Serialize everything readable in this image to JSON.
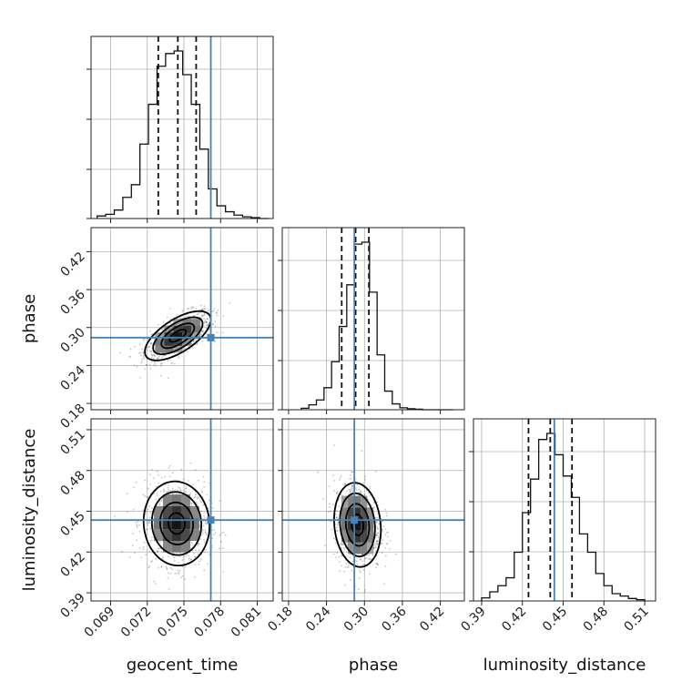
{
  "chart_data": {
    "type": "corner",
    "parameters": [
      "geocent_time",
      "phase",
      "luminosity_distance"
    ],
    "ranges": {
      "geocent_time": [
        0.0674,
        0.0823
      ],
      "phase": [
        0.17,
        0.458
      ],
      "luminosity_distance": [
        0.384,
        0.518
      ]
    },
    "ticks": {
      "geocent_time": [
        0.069,
        0.072,
        0.075,
        0.078,
        0.081
      ],
      "phase": [
        0.18,
        0.24,
        0.3,
        0.36,
        0.42
      ],
      "luminosity_distance": [
        0.39,
        0.42,
        0.45,
        0.48,
        0.51
      ]
    },
    "tick_labels": {
      "geocent_time": [
        "0.069",
        "0.072",
        "0.075",
        "0.078",
        "0.081"
      ],
      "phase": [
        "0.18",
        "0.24",
        "0.30",
        "0.36",
        "0.42"
      ],
      "luminosity_distance": [
        "0.39",
        "0.42",
        "0.45",
        "0.48",
        "0.51"
      ]
    },
    "truths": {
      "geocent_time": 0.0772,
      "phase": 0.284,
      "luminosity_distance": 0.4435
    },
    "quantiles": {
      "geocent_time": [
        0.0729,
        0.0745,
        0.076
      ],
      "phase": [
        0.264,
        0.286,
        0.307
      ],
      "luminosity_distance": [
        0.4245,
        0.4405,
        0.4565
      ]
    },
    "marginals": {
      "geocent_time": {
        "bins": [
          0.0679,
          0.0686,
          0.0693,
          0.07,
          0.0707,
          0.0714,
          0.0721,
          0.0728,
          0.0735,
          0.0742,
          0.0749,
          0.0756,
          0.0763,
          0.077,
          0.0777,
          0.0784,
          0.0791,
          0.0798,
          0.0805,
          0.0812
        ],
        "counts": [
          3,
          5,
          10,
          25,
          40,
          88,
          135,
          180,
          195,
          198,
          170,
          135,
          82,
          35,
          15,
          8,
          4,
          2,
          1,
          0
        ]
      },
      "phase": {
        "bins": [
          0.2,
          0.212,
          0.224,
          0.236,
          0.248,
          0.26,
          0.272,
          0.284,
          0.296,
          0.308,
          0.32,
          0.332,
          0.344,
          0.356,
          0.368,
          0.38,
          0.392,
          0.404,
          0.416,
          0.428
        ],
        "counts": [
          3,
          10,
          20,
          45,
          98,
          170,
          255,
          338,
          342,
          240,
          112,
          38,
          12,
          4,
          2,
          1,
          0,
          0,
          0,
          0
        ]
      },
      "luminosity_distance": {
        "bins": [
          0.39,
          0.396,
          0.402,
          0.408,
          0.414,
          0.42,
          0.426,
          0.432,
          0.438,
          0.444,
          0.45,
          0.456,
          0.462,
          0.468,
          0.474,
          0.48,
          0.486,
          0.492,
          0.498,
          0.504
        ],
        "counts": [
          5,
          15,
          25,
          38,
          80,
          145,
          200,
          265,
          275,
          240,
          205,
          170,
          110,
          80,
          45,
          25,
          12,
          8,
          4,
          2
        ]
      }
    },
    "pairs": [
      {
        "x": "geocent_time",
        "y": "phase",
        "center": [
          0.0745,
          0.287
        ],
        "sigma": [
          0.00135,
          0.0195
        ],
        "rho": 0.65
      },
      {
        "x": "geocent_time",
        "y": "luminosity_distance",
        "center": [
          0.0744,
          0.441
        ],
        "sigma": [
          0.00135,
          0.0155
        ],
        "rho": -0.05
      },
      {
        "x": "phase",
        "y": "luminosity_distance",
        "center": [
          0.289,
          0.44
        ],
        "sigma": [
          0.0185,
          0.0155
        ],
        "rho": -0.12
      }
    ],
    "contour_levels": [
      "1-sigma",
      "2-sigma",
      "3-sigma"
    ],
    "colors": {
      "truth": "#4682b4",
      "hist": "#111111",
      "density": "#000000",
      "grid": "#b0b0b0"
    },
    "grid": true
  }
}
